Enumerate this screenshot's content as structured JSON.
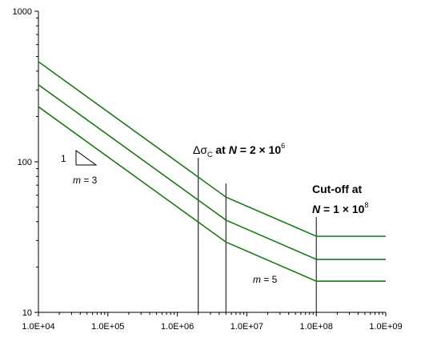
{
  "chart_data": {
    "type": "line",
    "title": "",
    "xlabel": "",
    "ylabel": "",
    "x_scale": "log",
    "y_scale": "log",
    "xlim": [
      10000,
      1000000000
    ],
    "ylim": [
      10,
      1000
    ],
    "grid": false,
    "legend": "none",
    "series_color": "#1a7a1a",
    "x_ticks": [
      "1.0E+04",
      "1.0E+05",
      "1.0E+06",
      "1.0E+07",
      "1.0E+08",
      "1.0E+09"
    ],
    "x_tick_values": [
      10000,
      100000,
      1000000,
      10000000,
      100000000,
      1000000000
    ],
    "y_ticks": [
      "10",
      "100",
      "1000"
    ],
    "y_tick_values": [
      10,
      100,
      1000
    ],
    "series": [
      {
        "x": [
          10000,
          5000000,
          100000000,
          1000000000
        ],
        "y": [
          462,
          58.3,
          32.0,
          32.0
        ]
      },
      {
        "x": [
          10000,
          5000000,
          100000000,
          1000000000
        ],
        "y": [
          325,
          41.0,
          22.5,
          22.5
        ]
      },
      {
        "x": [
          10000,
          5000000,
          100000000,
          1000000000
        ],
        "y": [
          232,
          29.3,
          16.1,
          16.1
        ]
      }
    ],
    "vertical_markers": [
      2000000,
      5000000,
      100000000
    ],
    "annotations": {
      "slope_one": "1",
      "m3_m": "m",
      "m3_rest": " = 3",
      "m5_m": "m",
      "m5_rest": " = 5",
      "delta_sigma": "Δσ",
      "delta_sub": "C",
      "at_text": " at ",
      "n_symbol": "N",
      "delta_eq": " = 2 × 10",
      "delta_exp": "6",
      "cutoff_line1": "Cut-off at",
      "cutoff_eq": " = 1 × 10",
      "cutoff_exp": "8"
    }
  }
}
